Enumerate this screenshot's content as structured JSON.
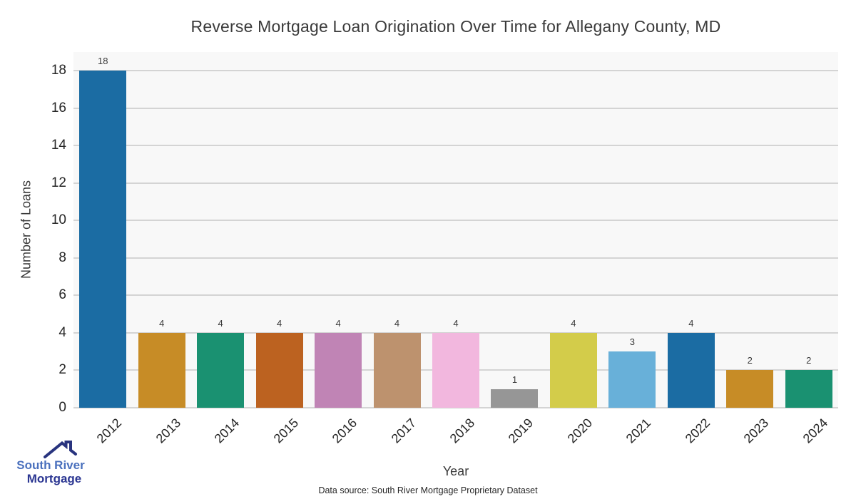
{
  "title": "Reverse Mortgage Loan Origination Over Time for Allegany County, MD",
  "chart_data": {
    "type": "bar",
    "categories": [
      "2012",
      "2013",
      "2014",
      "2015",
      "2016",
      "2017",
      "2018",
      "2019",
      "2020",
      "2021",
      "2022",
      "2023",
      "2024"
    ],
    "values": [
      18,
      4,
      4,
      4,
      4,
      4,
      4,
      1,
      4,
      3,
      4,
      2,
      2
    ],
    "bar_colors": [
      "#1b6ca3",
      "#c78c26",
      "#1a9171",
      "#bc6220",
      "#c084b5",
      "#bd926e",
      "#f2b7de",
      "#969696",
      "#d3cc4a",
      "#68b0d9",
      "#1b6ca3",
      "#c78c26",
      "#1a9171"
    ],
    "title": "Reverse Mortgage Loan Origination Over Time for Allegany County, MD",
    "xlabel": "Year",
    "ylabel": "Number of Loans",
    "yticks": [
      0,
      2,
      4,
      6,
      8,
      10,
      12,
      14,
      16,
      18
    ],
    "ylim": [
      0,
      19.0
    ],
    "grid": true,
    "legend": false,
    "plot_background": "#f8f8f8",
    "grid_color": "#d4d4d4"
  },
  "footer": {
    "data_source": "Data source: South River Mortgage Proprietary Dataset"
  },
  "logo": {
    "line1": "South River",
    "line2": "Mortgage",
    "line1_color": "#4a70bd",
    "line2_color": "#2b3692",
    "icon": "house-roof-icon",
    "icon_color": "#28337e"
  }
}
